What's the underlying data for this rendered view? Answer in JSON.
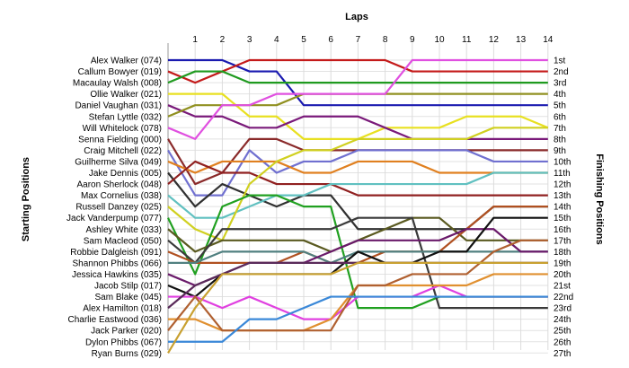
{
  "chart_data": {
    "type": "line",
    "title": "Laps",
    "ylabel": "Starting Positions",
    "y2label": "Finishing Positions",
    "laps": [
      1,
      2,
      3,
      4,
      5,
      6,
      7,
      8,
      9,
      10,
      11,
      12,
      13,
      14
    ],
    "start_labels": [
      "Alex Walker (074)",
      "Callum Bowyer (019)",
      "Macaulay Walsh (008)",
      "Ollie Walker (021)",
      "Daniel Vaughan (031)",
      "Stefan Lyttle (032)",
      "Will Whitelock (078)",
      "Senna Fielding (000)",
      "Craig Mitchell (022)",
      "Guilherme Silva (049)",
      "Jake Dennis (005)",
      "Aaron Sherlock (048)",
      "Max Cornelius (038)",
      "Russell Danzey (025)",
      "Jack Vanderpump (077)",
      "Ashley White (033)",
      "Sam Macleod (050)",
      "Robbie Dalgleish (091)",
      "Shannon Phibbs (066)",
      "Jessica Hawkins (035)",
      "Jacob Stilp (017)",
      "Sam Blake (045)",
      "Alex Hamilton (018)",
      "Charlie Eastwood (036)",
      "Jack Parker (020)",
      "Dylon Phibbs (067)",
      "Ryan Burns (029)"
    ],
    "finish_labels": [
      "1st",
      "2nd",
      "3rd",
      "4th",
      "5th",
      "6th",
      "7th",
      "8th",
      "9th",
      "10th",
      "11th",
      "12th",
      "13th",
      "14th",
      "15th",
      "16th",
      "17th",
      "18th",
      "19th",
      "20th",
      "21st",
      "22nd",
      "23rd",
      "24th",
      "25th",
      "26th",
      "27th"
    ],
    "series": [
      {
        "start": 1,
        "color": "#1a1ab0",
        "positions": [
          1,
          1,
          2,
          2,
          5,
          5,
          5,
          5,
          5,
          5,
          5,
          5,
          5,
          5
        ]
      },
      {
        "start": 2,
        "color": "#c41a1a",
        "positions": [
          3,
          2,
          1,
          1,
          1,
          1,
          1,
          1,
          2,
          2,
          2,
          2,
          2,
          2
        ]
      },
      {
        "start": 3,
        "color": "#1f9a1f",
        "positions": [
          2,
          2,
          3,
          3,
          3,
          3,
          3,
          3,
          3,
          3,
          3,
          3,
          3,
          3
        ]
      },
      {
        "start": 4,
        "color": "#e8e020",
        "positions": [
          4,
          4,
          6,
          6,
          8,
          8,
          8,
          7,
          7,
          7,
          6,
          6,
          6,
          7
        ]
      },
      {
        "start": 5,
        "color": "#7a1a7a",
        "positions": [
          6,
          6,
          7,
          7,
          6,
          6,
          6,
          7,
          8,
          8,
          8,
          8,
          8,
          8
        ]
      },
      {
        "start": 6,
        "color": "#909020",
        "positions": [
          5,
          5,
          5,
          5,
          4,
          4,
          4,
          4,
          4,
          4,
          4,
          4,
          4,
          4
        ]
      },
      {
        "start": 7,
        "color": "#e050e0",
        "positions": [
          8,
          5,
          5,
          4,
          4,
          4,
          4,
          4,
          1,
          1,
          1,
          1,
          1,
          1
        ]
      },
      {
        "start": 8,
        "color": "#8a2a2a",
        "positions": [
          12,
          11,
          8,
          8,
          9,
          9,
          9,
          9,
          9,
          9,
          9,
          9,
          9,
          9
        ]
      },
      {
        "start": 9,
        "color": "#7070d0",
        "positions": [
          13,
          13,
          9,
          11,
          10,
          10,
          9,
          9,
          9,
          9,
          9,
          10,
          10,
          10
        ]
      },
      {
        "start": 10,
        "color": "#e08020",
        "positions": [
          11,
          10,
          10,
          10,
          11,
          11,
          10,
          10,
          10,
          11,
          11,
          11,
          11,
          11
        ]
      },
      {
        "start": 11,
        "color": "#303030",
        "positions": [
          14,
          12,
          13,
          14,
          13,
          13,
          16,
          16,
          16,
          16,
          16,
          14,
          14,
          14
        ]
      },
      {
        "start": 12,
        "color": "#902020",
        "positions": [
          10,
          11,
          11,
          12,
          12,
          12,
          13,
          13,
          13,
          13,
          13,
          13,
          13,
          13
        ]
      },
      {
        "start": 13,
        "color": "#60c0c0",
        "positions": [
          15,
          15,
          14,
          13,
          13,
          12,
          12,
          12,
          12,
          12,
          12,
          11,
          11,
          11
        ]
      },
      {
        "start": 14,
        "color": "#d0d020",
        "positions": [
          16,
          17,
          12,
          10,
          9,
          9,
          8,
          8,
          8,
          8,
          8,
          7,
          7,
          7
        ]
      },
      {
        "start": 15,
        "color": "#20a020",
        "positions": [
          20,
          14,
          13,
          13,
          14,
          14,
          23,
          23,
          23,
          22,
          22,
          22,
          22,
          22
        ]
      },
      {
        "start": 16,
        "color": "#5a5a20",
        "positions": [
          18,
          17,
          17,
          17,
          17,
          18,
          17,
          16,
          15,
          15,
          17,
          17,
          17,
          17
        ]
      },
      {
        "start": 17,
        "color": "#3a3a3a",
        "positions": [
          19,
          16,
          16,
          16,
          16,
          16,
          15,
          15,
          15,
          23,
          23,
          23,
          23,
          23
        ]
      },
      {
        "start": 18,
        "color": "#b05020",
        "positions": [
          19,
          19,
          19,
          19,
          18,
          19,
          19,
          18,
          18,
          18,
          16,
          14,
          14,
          14
        ]
      },
      {
        "start": 19,
        "color": "#508080",
        "positions": [
          19,
          18,
          18,
          18,
          18,
          19,
          18,
          18,
          18,
          18,
          18,
          18,
          18,
          18
        ]
      },
      {
        "start": 20,
        "color": "#6a1a6a",
        "positions": [
          21,
          20,
          19,
          19,
          19,
          18,
          17,
          17,
          17,
          17,
          16,
          16,
          18,
          18
        ]
      },
      {
        "start": 21,
        "color": "#101010",
        "positions": [
          22,
          20,
          20,
          20,
          20,
          20,
          18,
          19,
          19,
          18,
          18,
          15,
          15,
          15
        ]
      },
      {
        "start": 22,
        "color": "#e040e0",
        "positions": [
          22,
          23,
          22,
          23,
          24,
          24,
          22,
          22,
          22,
          21,
          22,
          22,
          22,
          22
        ]
      },
      {
        "start": 23,
        "color": "#5a2a5a",
        "positions": [
          21,
          20,
          19,
          19,
          19,
          19,
          19,
          19,
          19,
          19,
          19,
          19,
          19,
          19
        ]
      },
      {
        "start": 24,
        "color": "#e09030",
        "positions": [
          24,
          25,
          25,
          25,
          25,
          24,
          21,
          21,
          21,
          21,
          21,
          20,
          20,
          20
        ]
      },
      {
        "start": 25,
        "color": "#b06030",
        "positions": [
          22,
          25,
          25,
          25,
          25,
          25,
          21,
          21,
          20,
          20,
          20,
          18,
          17,
          17
        ]
      },
      {
        "start": 26,
        "color": "#3a88d8",
        "positions": [
          26,
          26,
          24,
          24,
          23,
          22,
          22,
          22,
          22,
          22,
          22,
          22,
          22,
          22
        ]
      },
      {
        "start": 27,
        "color": "#c8a030",
        "positions": [
          23,
          20,
          20,
          20,
          20,
          20,
          19,
          19,
          19,
          19,
          19,
          19,
          19,
          19
        ]
      }
    ]
  }
}
